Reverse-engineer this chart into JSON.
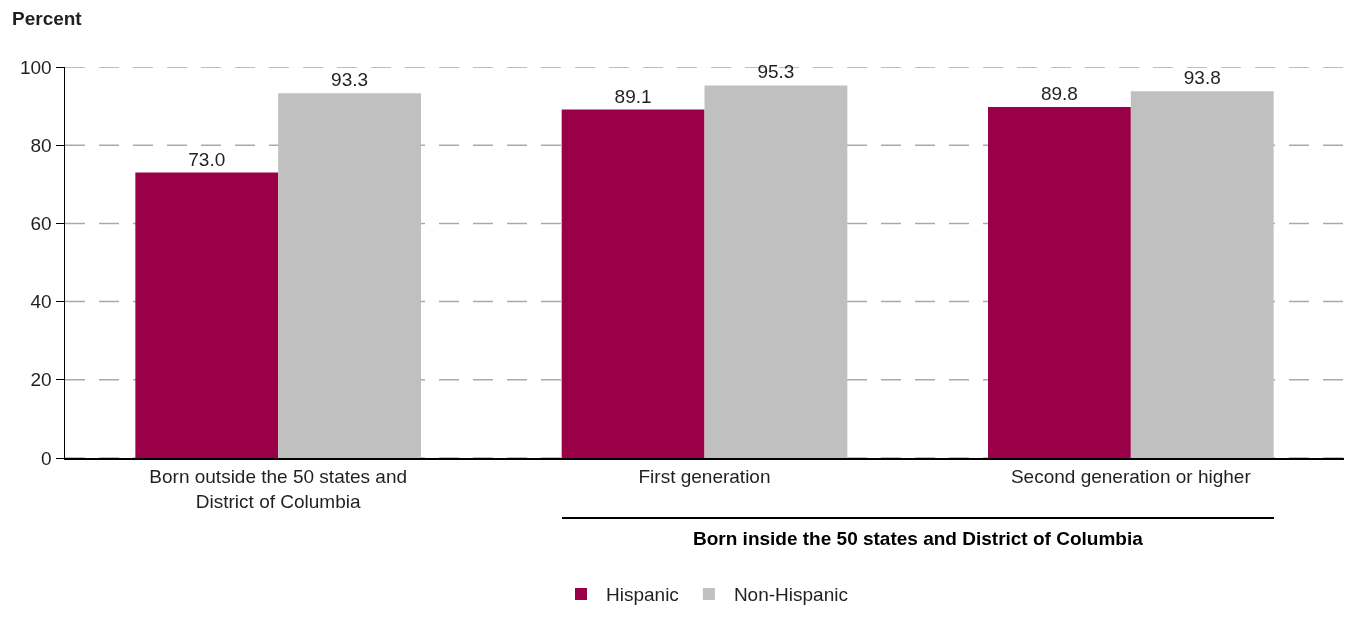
{
  "chart_data": {
    "type": "bar",
    "ylabel": "Percent",
    "categories": [
      "Born outside the 50 states and\nDistrict of Columbia",
      "First generation",
      "Second generation or higher"
    ],
    "series": [
      {
        "name": "Hispanic",
        "color": "#990048",
        "values": [
          73.0,
          89.1,
          89.8
        ],
        "value_labels": [
          "73.0",
          "89.1",
          "89.8"
        ]
      },
      {
        "name": "Non-Hispanic",
        "color": "#c0c0c0",
        "values": [
          93.3,
          95.3,
          93.8
        ],
        "value_labels": [
          "93.3",
          "95.3",
          "93.8"
        ]
      }
    ],
    "ylim": [
      0,
      100
    ],
    "yticks": [
      0,
      20,
      40,
      60,
      80,
      100
    ],
    "grid": "y",
    "legend": "bottom",
    "annotations": [
      "Born inside the 50 states and District of Columbia"
    ]
  }
}
